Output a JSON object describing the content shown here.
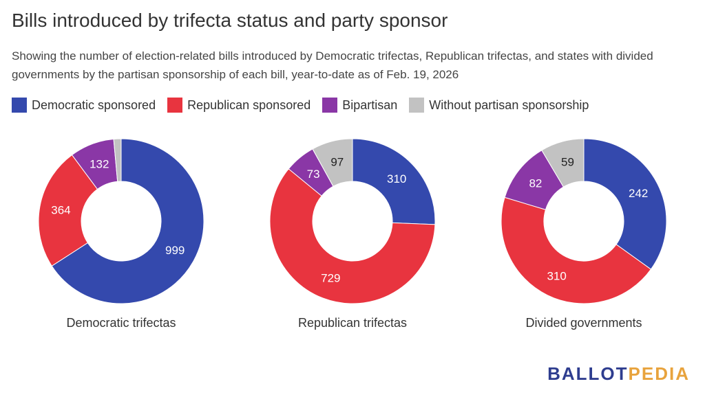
{
  "header": {
    "title": "Bills introduced by trifecta status and party sponsor",
    "subtitle": "Showing the number of election-related bills introduced by Democratic trifectas, Republican trifectas, and states with divided governments by the partisan sponsorship of each bill, year-to-date as of Feb. 19, 2026"
  },
  "legend": [
    {
      "label": "Democratic sponsored",
      "color": "#3449ad"
    },
    {
      "label": "Republican sponsored",
      "color": "#e8343f"
    },
    {
      "label": "Bipartisan",
      "color": "#8a37a6"
    },
    {
      "label": "Without partisan sponsorship",
      "color": "#c2c2c2"
    }
  ],
  "chart_data": [
    {
      "type": "pie",
      "title": "Democratic trifectas",
      "categories": [
        "Democratic sponsored",
        "Republican sponsored",
        "Bipartisan",
        "Without partisan sponsorship"
      ],
      "values": [
        999,
        364,
        132,
        22
      ],
      "labels": [
        "999",
        "364",
        "132",
        ""
      ],
      "colors": [
        "#3449ad",
        "#e8343f",
        "#8a37a6",
        "#c2c2c2"
      ]
    },
    {
      "type": "pie",
      "title": "Republican trifectas",
      "categories": [
        "Democratic sponsored",
        "Republican sponsored",
        "Bipartisan",
        "Without partisan sponsorship"
      ],
      "values": [
        310,
        729,
        73,
        97
      ],
      "labels": [
        "310",
        "729",
        "73",
        "97"
      ],
      "colors": [
        "#3449ad",
        "#e8343f",
        "#8a37a6",
        "#c2c2c2"
      ]
    },
    {
      "type": "pie",
      "title": "Divided governments",
      "categories": [
        "Democratic sponsored",
        "Republican sponsored",
        "Bipartisan",
        "Without partisan sponsorship"
      ],
      "values": [
        242,
        310,
        82,
        59
      ],
      "labels": [
        "242",
        "310",
        "82",
        "59"
      ],
      "colors": [
        "#3449ad",
        "#e8343f",
        "#8a37a6",
        "#c2c2c2"
      ]
    }
  ],
  "branding": {
    "logo_part1": "BALLOT",
    "logo_part2": "PEDIA"
  }
}
